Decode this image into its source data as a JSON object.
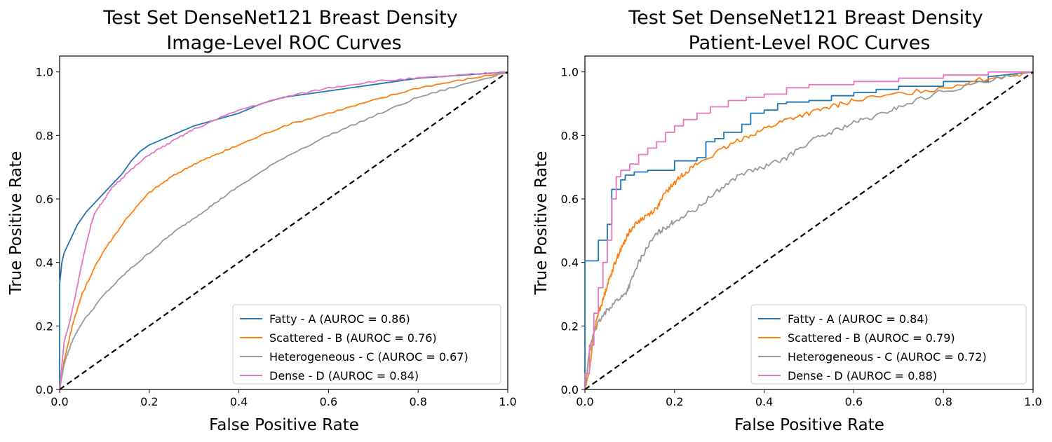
{
  "chart_data": [
    {
      "type": "line",
      "title_lines": [
        "Test Set DenseNet121 Breast Density",
        "Image-Level ROC Curves"
      ],
      "xlabel": "False Positive Rate",
      "ylabel": "True Positive Rate",
      "xlim": [
        0.0,
        1.0
      ],
      "ylim": [
        0.0,
        1.05
      ],
      "xticks": [
        "0.0",
        "0.2",
        "0.4",
        "0.6",
        "0.8",
        "1.0"
      ],
      "yticks": [
        "0.0",
        "0.2",
        "0.4",
        "0.6",
        "0.8",
        "1.0"
      ],
      "grid": false,
      "legend_position": "lower-right",
      "series": [
        {
          "name": "Fatty - A (AUROC = 0.86)",
          "color": "#1f77b4",
          "style": "step",
          "x": [
            0,
            0,
            0.005,
            0.01,
            0.02,
            0.03,
            0.04,
            0.05,
            0.06,
            0.08,
            0.1,
            0.12,
            0.14,
            0.16,
            0.18,
            0.2,
            0.25,
            0.3,
            0.35,
            0.4,
            0.45,
            0.5,
            0.6,
            0.7,
            0.8,
            0.9,
            1.0
          ],
          "y": [
            0,
            0.33,
            0.4,
            0.43,
            0.46,
            0.49,
            0.52,
            0.54,
            0.56,
            0.59,
            0.62,
            0.65,
            0.68,
            0.72,
            0.75,
            0.77,
            0.8,
            0.83,
            0.85,
            0.87,
            0.9,
            0.92,
            0.94,
            0.96,
            0.98,
            0.99,
            1.0
          ]
        },
        {
          "name": "Scattered - B (AUROC = 0.76)",
          "color": "#ff7f0e",
          "style": "smooth",
          "x": [
            0,
            0.01,
            0.03,
            0.05,
            0.08,
            0.1,
            0.15,
            0.2,
            0.25,
            0.3,
            0.35,
            0.4,
            0.5,
            0.6,
            0.7,
            0.8,
            0.9,
            1.0
          ],
          "y": [
            0,
            0.09,
            0.21,
            0.3,
            0.39,
            0.44,
            0.54,
            0.62,
            0.67,
            0.71,
            0.74,
            0.77,
            0.83,
            0.87,
            0.91,
            0.95,
            0.975,
            1.0
          ]
        },
        {
          "name": "Heterogeneous - C (AUROC = 0.67)",
          "color": "#999999",
          "style": "smooth",
          "x": [
            0,
            0.01,
            0.03,
            0.05,
            0.1,
            0.15,
            0.2,
            0.25,
            0.3,
            0.35,
            0.4,
            0.5,
            0.6,
            0.7,
            0.8,
            0.9,
            1.0
          ],
          "y": [
            0,
            0.08,
            0.16,
            0.21,
            0.3,
            0.37,
            0.43,
            0.49,
            0.54,
            0.59,
            0.64,
            0.73,
            0.8,
            0.86,
            0.92,
            0.96,
            1.0
          ]
        },
        {
          "name": "Dense - D (AUROC = 0.84)",
          "color": "#e377c2",
          "style": "smooth",
          "x": [
            0,
            0.01,
            0.02,
            0.03,
            0.04,
            0.05,
            0.06,
            0.07,
            0.08,
            0.1,
            0.12,
            0.15,
            0.2,
            0.25,
            0.3,
            0.4,
            0.5,
            0.6,
            0.7,
            0.8,
            0.9,
            1.0
          ],
          "y": [
            0,
            0.15,
            0.2,
            0.26,
            0.33,
            0.4,
            0.46,
            0.52,
            0.56,
            0.6,
            0.64,
            0.68,
            0.74,
            0.78,
            0.82,
            0.88,
            0.92,
            0.95,
            0.97,
            0.98,
            0.99,
            1.0
          ]
        },
        {
          "name": "",
          "color": "#000000",
          "style": "dashed",
          "x": [
            0,
            1
          ],
          "y": [
            0,
            1
          ]
        }
      ]
    },
    {
      "type": "line",
      "title_lines": [
        "Test Set DenseNet121 Breast Density",
        "Patient-Level ROC Curves"
      ],
      "xlabel": "False Positive Rate",
      "ylabel": "True Positive Rate",
      "xlim": [
        0.0,
        1.0
      ],
      "ylim": [
        0.0,
        1.05
      ],
      "xticks": [
        "0.0",
        "0.2",
        "0.4",
        "0.6",
        "0.8",
        "1.0"
      ],
      "yticks": [
        "0.0",
        "0.2",
        "0.4",
        "0.6",
        "0.8",
        "1.0"
      ],
      "grid": false,
      "legend_position": "lower-right",
      "series": [
        {
          "name": "Fatty - A (AUROC = 0.84)",
          "color": "#1f77b4",
          "style": "step",
          "x": [
            0,
            0,
            0.03,
            0.03,
            0.05,
            0.05,
            0.06,
            0.06,
            0.08,
            0.08,
            0.09,
            0.09,
            0.11,
            0.11,
            0.14,
            0.14,
            0.2,
            0.2,
            0.25,
            0.25,
            0.27,
            0.27,
            0.29,
            0.29,
            0.31,
            0.31,
            0.35,
            0.35,
            0.37,
            0.37,
            0.4,
            0.4,
            0.43,
            0.43,
            0.45,
            0.45,
            0.5,
            0.5,
            0.55,
            0.55,
            0.6,
            0.6,
            0.65,
            0.65,
            0.7,
            0.7,
            0.8,
            0.8,
            0.9,
            0.9,
            1.0
          ],
          "y": [
            0,
            0.405,
            0.405,
            0.47,
            0.47,
            0.52,
            0.52,
            0.63,
            0.63,
            0.66,
            0.66,
            0.675,
            0.675,
            0.685,
            0.685,
            0.69,
            0.69,
            0.72,
            0.72,
            0.73,
            0.73,
            0.78,
            0.78,
            0.79,
            0.79,
            0.81,
            0.81,
            0.835,
            0.835,
            0.87,
            0.87,
            0.88,
            0.88,
            0.9,
            0.9,
            0.905,
            0.905,
            0.91,
            0.91,
            0.925,
            0.925,
            0.935,
            0.935,
            0.945,
            0.945,
            0.955,
            0.955,
            0.97,
            0.97,
            0.985,
            1.0
          ]
        },
        {
          "name": "Scattered - B (AUROC = 0.79)",
          "color": "#ff7f0e",
          "style": "jagged",
          "x": [
            0,
            0.01,
            0.02,
            0.03,
            0.04,
            0.05,
            0.06,
            0.07,
            0.08,
            0.09,
            0.1,
            0.12,
            0.14,
            0.16,
            0.18,
            0.2,
            0.22,
            0.25,
            0.3,
            0.35,
            0.4,
            0.45,
            0.5,
            0.55,
            0.6,
            0.7,
            0.8,
            0.9,
            1.0
          ],
          "y": [
            0,
            0.06,
            0.18,
            0.24,
            0.28,
            0.33,
            0.37,
            0.41,
            0.44,
            0.47,
            0.5,
            0.53,
            0.55,
            0.57,
            0.62,
            0.65,
            0.68,
            0.71,
            0.75,
            0.79,
            0.82,
            0.85,
            0.87,
            0.89,
            0.91,
            0.93,
            0.95,
            0.98,
            1.0
          ]
        },
        {
          "name": "Heterogeneous - C (AUROC = 0.72)",
          "color": "#999999",
          "style": "jagged",
          "x": [
            0,
            0.01,
            0.02,
            0.03,
            0.05,
            0.07,
            0.09,
            0.1,
            0.12,
            0.14,
            0.16,
            0.18,
            0.2,
            0.25,
            0.3,
            0.35,
            0.4,
            0.45,
            0.5,
            0.55,
            0.6,
            0.65,
            0.7,
            0.8,
            0.9,
            1.0
          ],
          "y": [
            0,
            0.12,
            0.18,
            0.21,
            0.25,
            0.28,
            0.3,
            0.33,
            0.4,
            0.45,
            0.49,
            0.51,
            0.53,
            0.57,
            0.63,
            0.68,
            0.7,
            0.73,
            0.78,
            0.81,
            0.84,
            0.86,
            0.89,
            0.94,
            0.97,
            1.0
          ]
        },
        {
          "name": "Dense - D (AUROC = 0.88)",
          "color": "#e377c2",
          "style": "step",
          "x": [
            0,
            0,
            0.01,
            0.01,
            0.02,
            0.02,
            0.03,
            0.03,
            0.04,
            0.04,
            0.05,
            0.05,
            0.06,
            0.06,
            0.07,
            0.07,
            0.08,
            0.08,
            0.1,
            0.1,
            0.12,
            0.12,
            0.14,
            0.14,
            0.16,
            0.16,
            0.18,
            0.18,
            0.2,
            0.2,
            0.22,
            0.22,
            0.25,
            0.25,
            0.28,
            0.28,
            0.32,
            0.32,
            0.36,
            0.36,
            0.4,
            0.4,
            0.45,
            0.45,
            0.5,
            0.5,
            0.6,
            0.6,
            0.7,
            0.7,
            0.8,
            0.8,
            0.9,
            0.9,
            1.0
          ],
          "y": [
            0,
            0.05,
            0.05,
            0.14,
            0.14,
            0.24,
            0.24,
            0.32,
            0.32,
            0.4,
            0.4,
            0.47,
            0.47,
            0.6,
            0.6,
            0.67,
            0.67,
            0.69,
            0.69,
            0.71,
            0.71,
            0.74,
            0.74,
            0.76,
            0.76,
            0.78,
            0.78,
            0.81,
            0.81,
            0.83,
            0.83,
            0.85,
            0.85,
            0.87,
            0.87,
            0.89,
            0.89,
            0.91,
            0.91,
            0.92,
            0.92,
            0.93,
            0.93,
            0.95,
            0.95,
            0.96,
            0.96,
            0.97,
            0.97,
            0.98,
            0.98,
            0.99,
            0.99,
            1.0,
            1.0
          ]
        },
        {
          "name": "",
          "color": "#000000",
          "style": "dashed",
          "x": [
            0,
            1
          ],
          "y": [
            0,
            1
          ]
        }
      ]
    }
  ]
}
